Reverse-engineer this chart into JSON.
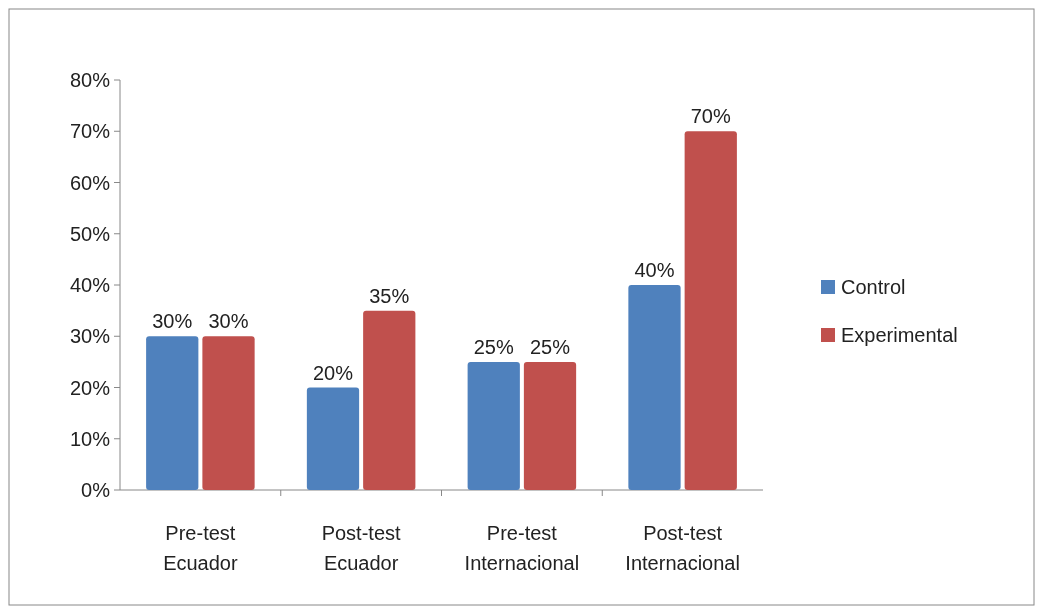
{
  "chart_data": {
    "type": "bar",
    "categories": [
      "Pre-test Ecuador",
      "Post-test Ecuador",
      "Pre-test Internacional",
      "Post-test Internacional"
    ],
    "series": [
      {
        "name": "Control",
        "color": "#4f81bd",
        "values": [
          30,
          20,
          25,
          40
        ],
        "value_labels": [
          "30%",
          "20%",
          "25%",
          "40%"
        ]
      },
      {
        "name": "Experimental",
        "color": "#c0504d",
        "values": [
          30,
          35,
          25,
          70
        ],
        "value_labels": [
          "30%",
          "35%",
          "25%",
          "70%"
        ]
      }
    ],
    "ylim": [
      0,
      80
    ],
    "yticks": [
      {
        "value": 0,
        "label": "0%"
      },
      {
        "value": 10,
        "label": "10%"
      },
      {
        "value": 20,
        "label": "20%"
      },
      {
        "value": 30,
        "label": "30%"
      },
      {
        "value": 40,
        "label": "40%"
      },
      {
        "value": 50,
        "label": "50%"
      },
      {
        "value": 60,
        "label": "60%"
      },
      {
        "value": 70,
        "label": "70%"
      },
      {
        "value": 80,
        "label": "80%"
      }
    ],
    "grid": false,
    "legend": "right"
  }
}
